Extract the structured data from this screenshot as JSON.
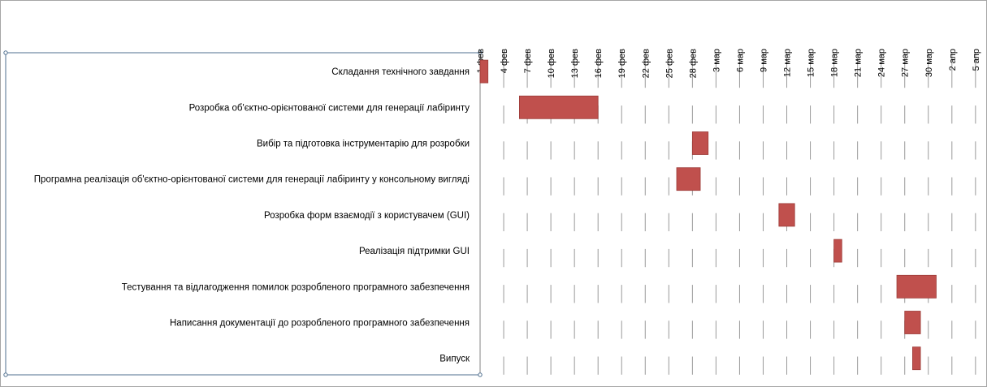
{
  "chart_data": {
    "type": "bar",
    "subtype": "gantt",
    "title": "",
    "xlabel": "",
    "ylabel": "",
    "x_tick_labels": [
      "1 фев",
      "4 фев",
      "7 фев",
      "10 фев",
      "13 фев",
      "16 фев",
      "19 фев",
      "22 фев",
      "25 фев",
      "28 фев",
      "3 мар",
      "6 мар",
      "9 мар",
      "12 мар",
      "15 мар",
      "18 мар",
      "21 мар",
      "24 мар",
      "27 мар",
      "30 мар",
      "2 апр",
      "5 апр"
    ],
    "tick_interval_days": 3,
    "xlim_days": [
      0,
      63
    ],
    "x_axis_position": "top",
    "grid": "vertical",
    "tasks": [
      {
        "name": "Складання технічного завдання",
        "start_day": 0,
        "duration_days": 1,
        "start_date": "1 фев",
        "end_date": "2 фев"
      },
      {
        "name": "Розробка об'єктно-орієнтованої системи для генерації лабіринту",
        "start_day": 5,
        "duration_days": 10,
        "start_date": "6 фев",
        "end_date": "16 фев"
      },
      {
        "name": "Вибір та підготовка інструментарію для розробки",
        "start_day": 27,
        "duration_days": 2,
        "start_date": "28 фев",
        "end_date": "2 мар"
      },
      {
        "name": "Програмна реалізація об'єктно-орієнтованої системи для генерації лабіринту у консольному вигляді",
        "start_day": 25,
        "duration_days": 3,
        "start_date": "26 фев",
        "end_date": "1 мар"
      },
      {
        "name": "Розробка форм взаємодії з користувачем (GUI)",
        "start_day": 38,
        "duration_days": 2,
        "start_date": "11 мар",
        "end_date": "13 мар"
      },
      {
        "name": "Реалізація підтримки GUI",
        "start_day": 45,
        "duration_days": 1,
        "start_date": "18 мар",
        "end_date": "19 мар"
      },
      {
        "name": "Тестування та відлагодження помилок розробленого програмного забезпечення",
        "start_day": 53,
        "duration_days": 5,
        "start_date": "26 мар",
        "end_date": "31 мар"
      },
      {
        "name": "Написання документації до розробленого програмного забезпечення",
        "start_day": 54,
        "duration_days": 2,
        "start_date": "27 мар",
        "end_date": "29 мар"
      },
      {
        "name": "Випуск",
        "start_day": 55,
        "duration_days": 1,
        "start_date": "28 мар",
        "end_date": "29 мар"
      }
    ],
    "colors": {
      "bar": "#c0504d",
      "bar_border": "#9c3b38",
      "grid": "#9a9a9a",
      "axis_line": "#868686",
      "frame": "#a6a6a6",
      "plot_border": "#4f6f8f"
    }
  }
}
